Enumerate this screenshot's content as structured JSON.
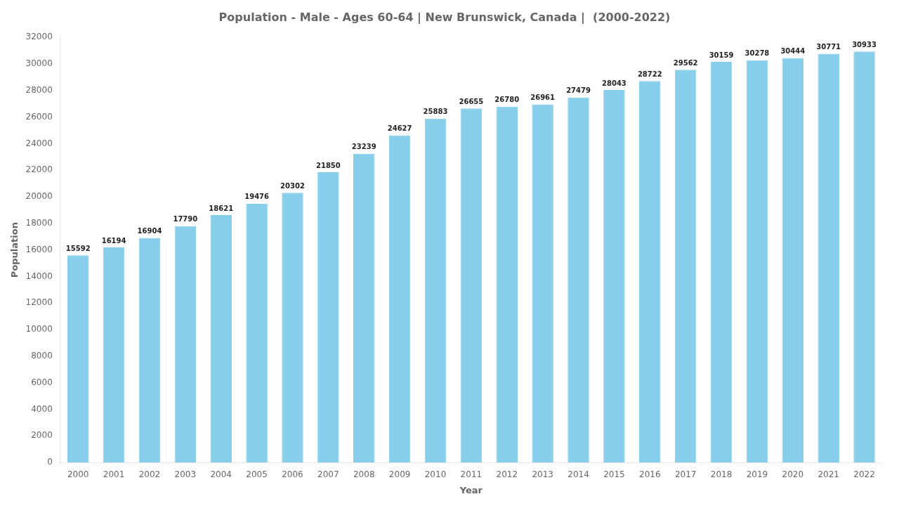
{
  "chart_data": {
    "type": "bar",
    "title": "Population - Male - Ages 60-64 | New Brunswick, Canada |  (2000-2022)",
    "xlabel": "Year",
    "ylabel": "Population",
    "categories": [
      "2000",
      "2001",
      "2002",
      "2003",
      "2004",
      "2005",
      "2006",
      "2007",
      "2008",
      "2009",
      "2010",
      "2011",
      "2012",
      "2013",
      "2014",
      "2015",
      "2016",
      "2017",
      "2018",
      "2019",
      "2020",
      "2021",
      "2022"
    ],
    "values": [
      15592,
      16194,
      16904,
      17790,
      18621,
      19476,
      20302,
      21850,
      23239,
      24627,
      25883,
      26655,
      26780,
      26961,
      27479,
      28043,
      28722,
      29562,
      30159,
      30278,
      30444,
      30771,
      30933
    ],
    "color": "#87ceeb",
    "ylim": [
      0,
      32000
    ],
    "yticks": [
      0,
      2000,
      4000,
      6000,
      8000,
      10000,
      12000,
      14000,
      16000,
      18000,
      20000,
      22000,
      24000,
      26000,
      28000,
      30000,
      32000
    ],
    "grid": false,
    "data_labels": true
  }
}
